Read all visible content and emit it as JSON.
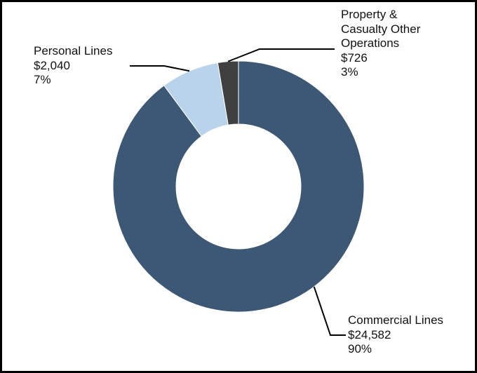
{
  "chart_data": {
    "type": "pie",
    "donut": true,
    "slices": [
      {
        "label_lines": [
          "Property &",
          "Casualty Other",
          "Operations"
        ],
        "value": 726,
        "value_text": "$726",
        "percent_text": "3%",
        "color": "#404040"
      },
      {
        "label_lines": [
          "Personal Lines"
        ],
        "value": 2040,
        "value_text": "$2,040",
        "percent_text": "7%",
        "color": "#b9d3ea"
      },
      {
        "label_lines": [
          "Commercial Lines"
        ],
        "value": 24582,
        "value_text": "$24,582",
        "percent_text": "90%",
        "color": "#3c5875"
      }
    ],
    "border_color": "#000000",
    "leader_color": "#000000"
  }
}
